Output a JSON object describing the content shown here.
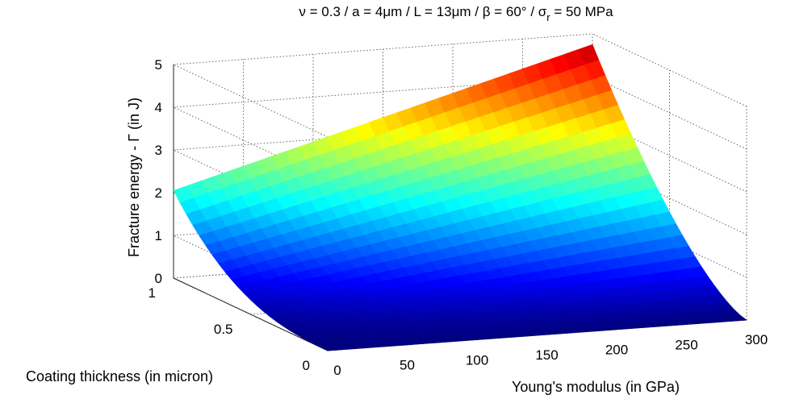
{
  "chart_data": {
    "type": "surface",
    "title": "ν = 0.3 / a = 4μm / L = 13μm / β = 60° / σ",
    "title_sub": "r",
    "title_tail": " = 50 MPa",
    "xlabel": "Young's modulus (in GPa)",
    "ylabel": "Coating thickness (in micron)",
    "zlabel": "Fracture energy - Γ (in J)",
    "xlim": [
      0,
      300
    ],
    "ylim": [
      0,
      1
    ],
    "zlim": [
      0,
      5
    ],
    "xticks": [
      "0",
      "50",
      "100",
      "150",
      "200",
      "250",
      "300"
    ],
    "yticks": [
      "0",
      "0.5",
      "1"
    ],
    "zticks": [
      "0",
      "1",
      "2",
      "3",
      "4",
      "5"
    ],
    "grid": true,
    "colormap": "jet",
    "corner_values": [
      {
        "E": 0,
        "h": 0,
        "gamma": 0.0
      },
      {
        "E": 0,
        "h": 1,
        "gamma": 2.05
      },
      {
        "E": 300,
        "h": 0,
        "gamma": 0.0
      },
      {
        "E": 300,
        "h": 1,
        "gamma": 4.75
      }
    ]
  }
}
